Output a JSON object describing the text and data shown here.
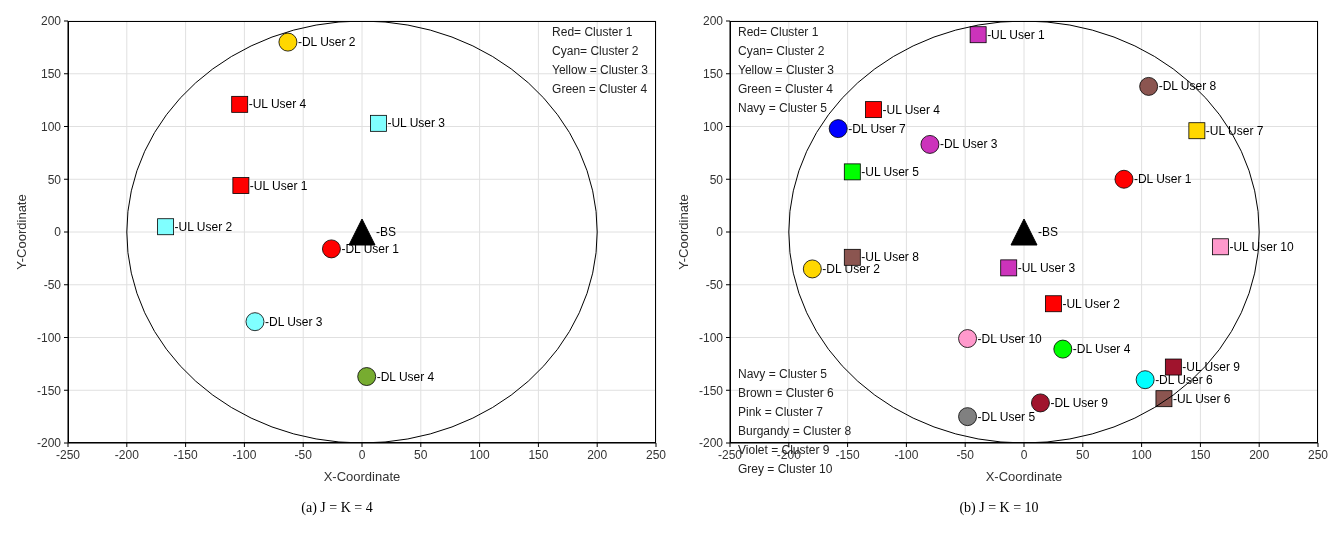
{
  "chart_data": [
    {
      "type": "scatter",
      "xlabel": "X-Coordinate",
      "ylabel": "Y-Coordinate",
      "xlim": [
        -250,
        250
      ],
      "ylim": [
        -200,
        200
      ],
      "xticks": [
        -250,
        -200,
        -150,
        -100,
        -50,
        0,
        50,
        100,
        150,
        200,
        250
      ],
      "yticks": [
        -200,
        -150,
        -100,
        -50,
        0,
        50,
        100,
        150,
        200
      ],
      "grid": true,
      "annotations": [
        "Red= Cluster 1\nCyan= Cluster 2\nYellow = Cluster 3\nGreen = Cluster 4",
        "(a) J = K = 4"
      ],
      "series": [
        {
          "type": "scatter",
          "marker": "triangle",
          "color": "#000000",
          "x": [
            0
          ],
          "values": [
            0
          ],
          "value_labels": [
            "-BS"
          ]
        },
        {
          "type": "scatter",
          "marker": "circle",
          "x": [
            -26,
            -63,
            -91,
            4
          ],
          "values": [
            -16,
            180,
            -85,
            -137
          ],
          "colors": [
            "#ff0000",
            "#ffd700",
            "#80ffff",
            "#77ac30"
          ],
          "value_labels": [
            "-DL User 1",
            "-DL User 2",
            "-DL User 3",
            "-DL User 4"
          ]
        },
        {
          "type": "scatter",
          "marker": "square",
          "x": [
            -103,
            -167,
            14,
            -104
          ],
          "values": [
            44,
            5,
            103,
            121
          ],
          "colors": [
            "#ff0000",
            "#80ffff",
            "#80ffff",
            "#ff0000"
          ],
          "value_labels": [
            "-UL User 1",
            "-UL User 2",
            "-UL User 3",
            "-UL User 4"
          ]
        }
      ]
    },
    {
      "type": "scatter",
      "xlabel": "X-Coordinate",
      "ylabel": "Y-Coordinate",
      "xlim": [
        -250,
        250
      ],
      "ylim": [
        -200,
        200
      ],
      "xticks": [
        -250,
        -200,
        -150,
        -100,
        -50,
        0,
        50,
        100,
        150,
        200,
        250
      ],
      "yticks": [
        -200,
        -150,
        -100,
        -50,
        0,
        50,
        100,
        150,
        200
      ],
      "grid": true,
      "annotations": [
        "Red= Cluster 1\nCyan= Cluster 2\nYellow = Cluster 3\nGreen = Cluster 4\nNavy = Cluster 5",
        "Navy = Cluster 5\nBrown = Cluster 6\nPink = Cluster 7\nBurgandy = Cluster 8\nViolet = Cluster 9\nGrey = Cluster 10",
        "(b) J = K = 10"
      ],
      "series": [
        {
          "type": "scatter",
          "marker": "triangle",
          "color": "#000000",
          "x": [
            0
          ],
          "values": [
            0
          ],
          "value_labels": [
            "-BS"
          ]
        },
        {
          "type": "scatter",
          "marker": "circle",
          "x": [
            85,
            -180,
            -80,
            33,
            -48,
            103,
            -158,
            106,
            14,
            -48
          ],
          "values": [
            50,
            -35,
            83,
            -111,
            -175,
            -140,
            98,
            138,
            -162,
            -101
          ],
          "colors": [
            "#ff0000",
            "#ffd700",
            "#cc33bb",
            "#00ff00",
            "#808080",
            "#00ffff",
            "#0000ff",
            "#8b5550",
            "#a0142d",
            "#ff99cc"
          ],
          "value_labels": [
            "-DL User 1",
            "-DL User 2",
            "-DL User 3",
            "-DL User 4",
            "-DL User 5",
            "-DL User 6",
            "-DL User 7",
            "-DL User 8",
            "-DL User 9",
            "-DL User 10"
          ]
        },
        {
          "type": "scatter",
          "marker": "square",
          "x": [
            -39,
            25,
            -13,
            -128,
            -146,
            119,
            147,
            -146,
            127,
            167
          ],
          "values": [
            187,
            -68,
            -34,
            116,
            57,
            -158,
            96,
            -24,
            -128,
            -14
          ],
          "colors": [
            "#cc33bb",
            "#ff0000",
            "#cc33bb",
            "#ff0000",
            "#00ff00",
            "#8b5550",
            "#ffd700",
            "#8b5550",
            "#a0142d",
            "#ff99cc"
          ],
          "value_labels": [
            "-UL User 1",
            "-UL User 2",
            "-UL User 3",
            "-UL User 4",
            "-UL User 5",
            "-UL User 6",
            "-UL User 7",
            "-UL User 8",
            "-UL User 9",
            "-UL User 10"
          ]
        }
      ]
    }
  ]
}
